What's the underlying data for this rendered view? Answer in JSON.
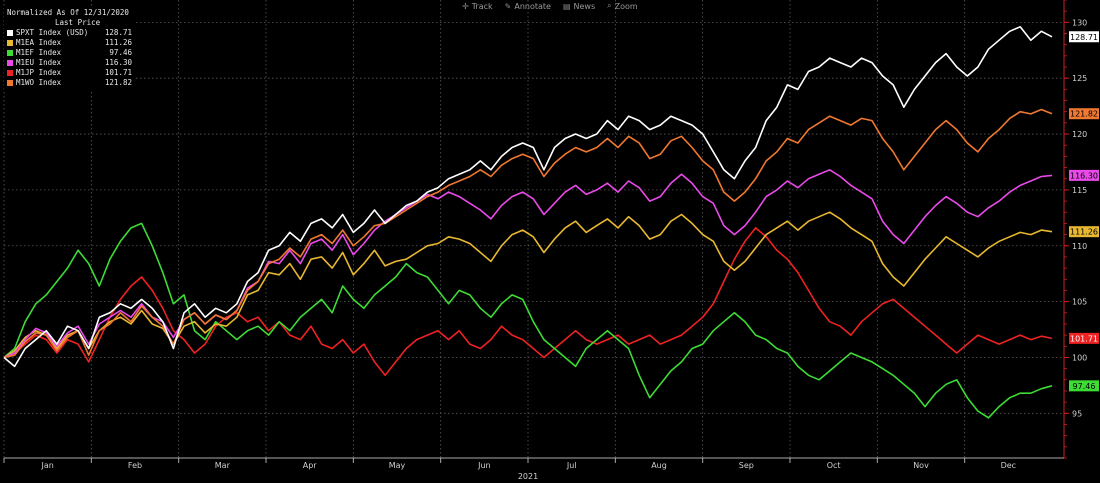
{
  "toolbar": {
    "items": [
      {
        "label": "Track",
        "icon": "crosshair-icon"
      },
      {
        "label": "Annotate",
        "icon": "pencil-icon"
      },
      {
        "label": "News",
        "icon": "news-icon"
      },
      {
        "label": "Zoom",
        "icon": "zoom-icon"
      }
    ]
  },
  "legend": {
    "title": "Normalized As Of 12/31/2020",
    "subtitle": "Last Price"
  },
  "chart_data": {
    "type": "line",
    "year_label": "2021",
    "months": [
      "Jan",
      "Feb",
      "Mar",
      "Apr",
      "May",
      "Jun",
      "Jul",
      "Aug",
      "Sep",
      "Oct",
      "Nov",
      "Dec"
    ],
    "ylim": [
      91,
      132
    ],
    "yticks": [
      95,
      100,
      105,
      110,
      115,
      120,
      125,
      130
    ],
    "grid": true,
    "legend_position": "top-left",
    "series": [
      {
        "name": "SPXT Index (USD)",
        "last": "128.71",
        "color": "#ffffff",
        "label_bg": "#ffffff",
        "label_fg": "#000000",
        "values": [
          100.0,
          99.2,
          100.8,
          101.6,
          102.4,
          101.2,
          102.8,
          102.4,
          100.8,
          103.6,
          104.0,
          104.8,
          104.4,
          105.2,
          104.4,
          103.2,
          100.8,
          104.0,
          104.8,
          103.6,
          104.4,
          104.0,
          104.8,
          106.8,
          107.6,
          109.6,
          110.0,
          111.2,
          110.4,
          112.0,
          112.4,
          111.6,
          112.8,
          111.2,
          112.0,
          113.2,
          112.0,
          112.8,
          113.6,
          114.0,
          114.8,
          115.2,
          116.0,
          116.4,
          116.8,
          117.6,
          116.8,
          118.0,
          118.8,
          119.2,
          118.8,
          116.8,
          118.8,
          119.6,
          120.0,
          119.6,
          120.0,
          121.2,
          120.4,
          121.6,
          121.2,
          120.4,
          120.8,
          121.6,
          121.2,
          120.8,
          120.0,
          118.4,
          116.8,
          116.0,
          117.6,
          118.8,
          121.2,
          122.4,
          124.4,
          124.0,
          125.6,
          126.0,
          126.8,
          126.4,
          126.0,
          126.8,
          126.4,
          125.2,
          124.4,
          122.4,
          124.0,
          125.2,
          126.4,
          127.2,
          126.0,
          125.2,
          126.0,
          127.6,
          128.4,
          129.2,
          129.6,
          128.4,
          129.2,
          128.71
        ]
      },
      {
        "name": "M1EA Index",
        "last": "111.26",
        "color": "#e8b830",
        "label_bg": "#e8b830",
        "label_fg": "#000000",
        "values": [
          100.0,
          100.6,
          101.8,
          102.4,
          102.0,
          100.8,
          102.0,
          102.4,
          100.8,
          102.4,
          103.2,
          103.6,
          103.0,
          104.2,
          103.0,
          102.6,
          101.2,
          102.8,
          103.2,
          102.2,
          103.0,
          102.8,
          103.6,
          105.6,
          106.0,
          107.6,
          107.4,
          108.4,
          107.0,
          108.8,
          109.0,
          108.0,
          109.4,
          107.4,
          108.4,
          109.6,
          108.2,
          108.6,
          108.8,
          109.4,
          110.0,
          110.2,
          110.8,
          110.6,
          110.2,
          109.4,
          108.6,
          110.0,
          111.0,
          111.4,
          110.8,
          109.4,
          110.6,
          111.6,
          112.2,
          111.2,
          111.8,
          112.4,
          111.6,
          112.6,
          111.8,
          110.6,
          111.0,
          112.2,
          112.8,
          112.0,
          111.0,
          110.4,
          108.6,
          107.8,
          108.6,
          109.8,
          111.0,
          111.6,
          112.2,
          111.4,
          112.2,
          112.6,
          113.0,
          112.4,
          111.6,
          111.0,
          110.4,
          108.4,
          107.2,
          106.4,
          107.6,
          108.8,
          109.8,
          110.8,
          110.2,
          109.6,
          109.0,
          109.8,
          110.4,
          110.8,
          111.2,
          111.0,
          111.4,
          111.26
        ]
      },
      {
        "name": "M1EF Index",
        "last": "97.46",
        "color": "#3ddc35",
        "label_bg": "#3ddc35",
        "label_fg": "#000000",
        "values": [
          100.0,
          100.8,
          103.2,
          104.8,
          105.6,
          106.8,
          108.0,
          109.6,
          108.4,
          106.4,
          108.8,
          110.4,
          111.6,
          112.0,
          110.0,
          107.6,
          104.8,
          105.6,
          102.4,
          101.6,
          103.2,
          102.4,
          101.6,
          102.4,
          102.8,
          102.0,
          103.2,
          102.4,
          103.6,
          104.4,
          105.2,
          104.0,
          106.4,
          105.2,
          104.4,
          105.6,
          106.4,
          107.2,
          108.4,
          107.6,
          107.2,
          106.0,
          104.8,
          106.0,
          105.6,
          104.4,
          103.6,
          104.8,
          105.6,
          105.2,
          103.2,
          101.6,
          100.8,
          100.0,
          99.2,
          100.8,
          101.6,
          102.4,
          101.6,
          100.8,
          98.4,
          96.4,
          97.6,
          98.8,
          99.6,
          100.8,
          101.2,
          102.4,
          103.2,
          104.0,
          103.2,
          102.0,
          101.6,
          100.8,
          100.4,
          99.2,
          98.4,
          98.0,
          98.8,
          99.6,
          100.4,
          100.0,
          99.6,
          99.0,
          98.4,
          97.6,
          96.8,
          95.6,
          96.8,
          97.6,
          98.0,
          96.4,
          95.2,
          94.6,
          95.6,
          96.4,
          96.8,
          96.8,
          97.2,
          97.46
        ]
      },
      {
        "name": "M1EU Index",
        "last": "116.30",
        "color": "#e94ae9",
        "label_bg": "#e94ae9",
        "label_fg": "#000000",
        "values": [
          100.0,
          100.4,
          101.6,
          102.6,
          102.2,
          101.0,
          102.2,
          102.8,
          101.2,
          103.0,
          103.6,
          104.2,
          103.6,
          104.8,
          103.6,
          103.2,
          101.8,
          103.4,
          104.0,
          103.0,
          103.8,
          103.4,
          104.2,
          106.2,
          106.8,
          108.6,
          108.4,
          109.6,
          108.4,
          110.2,
          110.6,
          109.6,
          111.0,
          109.2,
          110.2,
          111.4,
          112.2,
          112.8,
          113.4,
          114.0,
          114.6,
          114.2,
          114.8,
          114.4,
          113.8,
          113.2,
          112.4,
          113.6,
          114.4,
          114.8,
          114.2,
          112.8,
          113.8,
          114.8,
          115.4,
          114.6,
          115.0,
          115.6,
          114.8,
          115.8,
          115.2,
          114.0,
          114.4,
          115.6,
          116.4,
          115.6,
          114.4,
          113.8,
          111.8,
          111.0,
          111.8,
          113.0,
          114.4,
          115.0,
          115.8,
          115.2,
          116.0,
          116.4,
          116.8,
          116.2,
          115.4,
          114.8,
          114.2,
          112.2,
          111.0,
          110.2,
          111.4,
          112.6,
          113.6,
          114.4,
          113.8,
          113.0,
          112.6,
          113.4,
          114.0,
          114.8,
          115.4,
          115.8,
          116.2,
          116.3
        ]
      },
      {
        "name": "M1JP Index",
        "last": "101.71",
        "color": "#ee2222",
        "label_bg": "#ee2222",
        "label_fg": "#ffffff",
        "values": [
          100.0,
          100.4,
          101.2,
          102.0,
          101.6,
          100.4,
          101.6,
          101.2,
          99.6,
          101.6,
          103.6,
          105.2,
          106.4,
          107.2,
          106.0,
          104.4,
          102.4,
          101.6,
          100.4,
          101.2,
          102.8,
          103.6,
          104.0,
          103.2,
          103.6,
          102.4,
          103.2,
          102.0,
          101.6,
          102.8,
          101.2,
          100.8,
          101.6,
          100.4,
          101.2,
          99.6,
          98.4,
          99.6,
          100.8,
          101.6,
          102.0,
          102.4,
          101.6,
          102.4,
          101.2,
          100.8,
          101.6,
          102.8,
          102.0,
          101.6,
          100.8,
          100.0,
          100.8,
          101.6,
          102.4,
          101.6,
          101.2,
          101.6,
          102.0,
          101.2,
          101.6,
          102.0,
          101.2,
          101.6,
          102.0,
          102.8,
          103.6,
          104.8,
          106.8,
          108.8,
          110.4,
          111.6,
          110.8,
          109.6,
          108.8,
          107.6,
          106.0,
          104.4,
          103.2,
          102.8,
          102.0,
          103.2,
          104.0,
          104.8,
          105.2,
          104.4,
          103.6,
          102.8,
          102.0,
          101.2,
          100.4,
          101.2,
          102.0,
          101.6,
          101.2,
          101.6,
          102.0,
          101.6,
          101.9,
          101.71
        ]
      },
      {
        "name": "M1WO Index",
        "last": "121.82",
        "color": "#f07830",
        "label_bg": "#f07830",
        "label_fg": "#000000",
        "values": [
          100.0,
          100.2,
          101.4,
          102.2,
          102.0,
          100.6,
          101.8,
          102.4,
          100.2,
          102.4,
          103.0,
          104.0,
          103.2,
          104.6,
          103.6,
          102.8,
          101.2,
          103.4,
          104.0,
          103.0,
          103.8,
          103.4,
          104.2,
          106.0,
          106.8,
          108.4,
          108.8,
          109.8,
          109.0,
          110.6,
          111.0,
          110.2,
          111.4,
          110.0,
          110.8,
          111.8,
          112.0,
          112.6,
          113.2,
          113.8,
          114.4,
          114.8,
          115.4,
          115.8,
          116.2,
          116.8,
          116.2,
          117.2,
          117.8,
          118.2,
          117.8,
          116.2,
          117.4,
          118.2,
          118.8,
          118.4,
          118.8,
          119.6,
          118.8,
          119.8,
          119.2,
          117.8,
          118.2,
          119.4,
          119.8,
          118.8,
          117.6,
          116.8,
          114.8,
          114.0,
          114.8,
          116.0,
          117.6,
          118.4,
          119.6,
          119.2,
          120.4,
          121.0,
          121.6,
          121.2,
          120.8,
          121.4,
          121.2,
          119.6,
          118.4,
          116.8,
          118.0,
          119.2,
          120.4,
          121.2,
          120.4,
          119.2,
          118.4,
          119.6,
          120.4,
          121.4,
          122.0,
          121.8,
          122.2,
          121.82
        ]
      }
    ]
  }
}
